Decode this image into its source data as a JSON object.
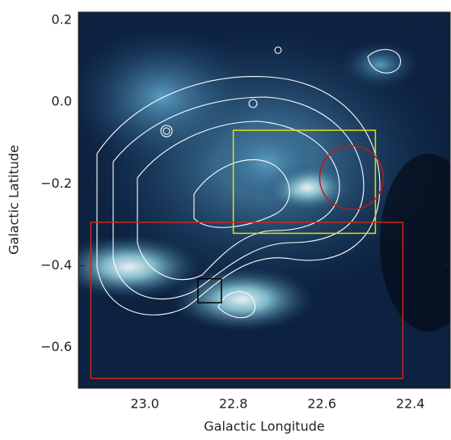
{
  "chart_data": {
    "type": "image",
    "xlabel": "Galactic Longitude",
    "ylabel": "Galactic Latitude",
    "xlim": [
      23.15,
      22.31
    ],
    "ylim": [
      -0.7,
      0.22
    ],
    "xticks": [
      {
        "value": 23.0,
        "label": "23.0"
      },
      22.8,
      22.6,
      22.4
    ],
    "yticks": [
      {
        "value": -0.6,
        "label": "−0.6"
      },
      {
        "value": -0.4,
        "label": "−0.4"
      },
      {
        "value": -0.2,
        "label": "−0.2"
      },
      {
        "value": 0,
        "label": "0.0"
      },
      0.2
    ],
    "regions": [
      {
        "shape": "rect",
        "color": "#e8e000",
        "x": [
          22.8,
          22.479
        ],
        "y": [
          -0.069,
          -0.321
        ]
      },
      {
        "shape": "rect",
        "color": "#d02818",
        "x": [
          23.122,
          22.417
        ],
        "y": [
          -0.294,
          -0.676
        ]
      },
      {
        "shape": "circle",
        "color": "#c01810",
        "x": 22.533,
        "y": -0.185,
        "r": 0.072
      },
      {
        "shape": "rect",
        "color": "#000000",
        "x": [
          22.88,
          22.827
        ],
        "y": [
          -0.432,
          -0.491
        ]
      }
    ]
  }
}
